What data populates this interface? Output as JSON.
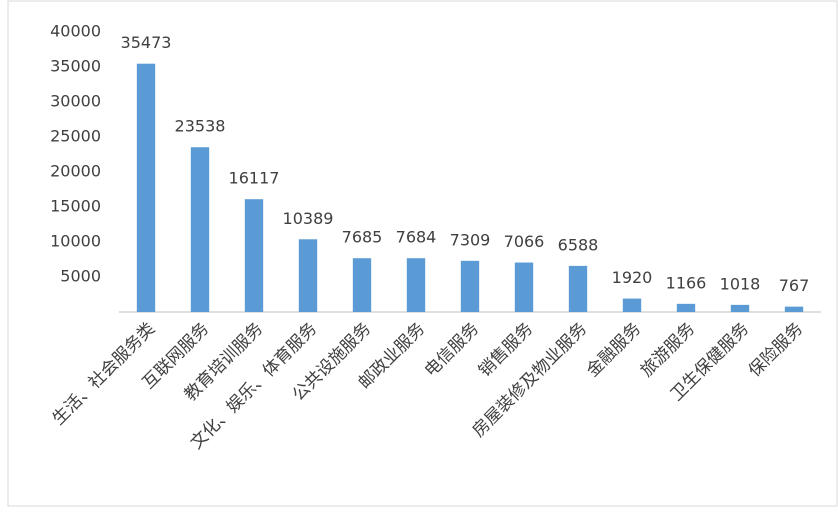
{
  "chart_data": {
    "type": "bar",
    "categories": [
      "生活、社会服务类",
      "互联网服务",
      "教育培训服务",
      "文化、娱乐、体育服务",
      "公共设施服务",
      "邮政业服务",
      "电信服务",
      "销售服务",
      "房屋装修及物业服务",
      "金融服务",
      "旅游服务",
      "卫生保健服务",
      "保险服务"
    ],
    "values": [
      35473,
      23538,
      16117,
      10389,
      7685,
      7684,
      7309,
      7066,
      6588,
      1920,
      1166,
      1018,
      767
    ],
    "color": "#5b9bd5",
    "ylim": [
      0,
      40000
    ],
    "yticks": [
      5000,
      10000,
      15000,
      20000,
      25000,
      30000,
      35000,
      40000
    ]
  }
}
